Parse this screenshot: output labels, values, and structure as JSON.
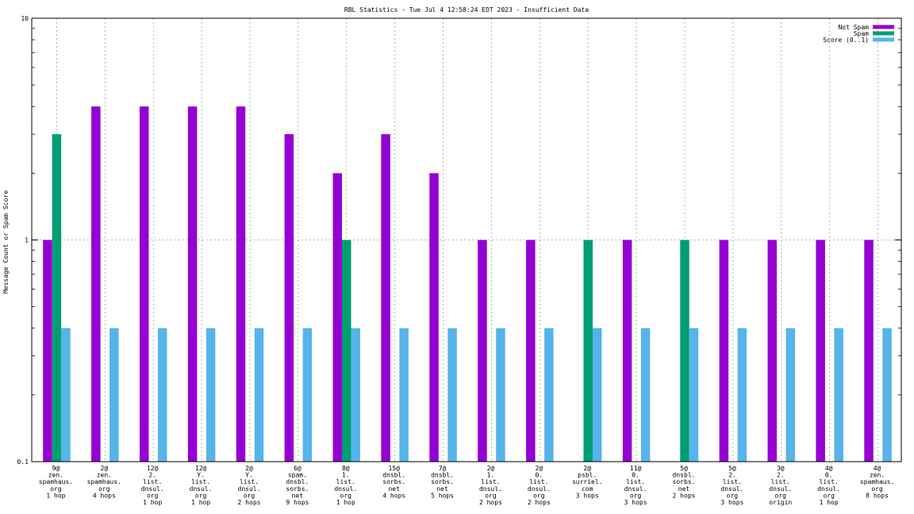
{
  "chart_data": {
    "type": "bar",
    "title": "RBL Statistics - Tue Jul  4 12:58:24 EDT 2023 - Insufficient Data",
    "ylabel": "Message Count or Spam Score",
    "yscale": "log",
    "ylim": [
      0.1,
      10
    ],
    "yticks": [
      {
        "value": 10,
        "label": "10"
      },
      {
        "value": 1,
        "label": "1"
      },
      {
        "value": 0.1,
        "label": "0.1"
      }
    ],
    "grid": "dotted at 1",
    "legend_position": "top-right",
    "categories": [
      [
        "9@",
        "zen.",
        "spamhaus.",
        "org",
        "1 hop"
      ],
      [
        "2@",
        "zen.",
        "spamhaus.",
        "org",
        "4 hops"
      ],
      [
        "12@",
        "2.",
        "list.",
        "dnsul.",
        "org",
        "1 hop"
      ],
      [
        "12@",
        "Y.",
        "list.",
        "dnsul.",
        "org",
        "1 hop"
      ],
      [
        "2@",
        "Y.",
        "list.",
        "dnsul.",
        "org",
        "2 hops"
      ],
      [
        "6@",
        "spam.",
        "dnsbl.",
        "sorbs.",
        "net",
        "9 hops"
      ],
      [
        "8@",
        "1.",
        "list.",
        "dnsul.",
        "org",
        "1 hop"
      ],
      [
        "15@",
        "dnsbl.",
        "sorbs.",
        "net",
        "4 hops"
      ],
      [
        "7@",
        "dnsbl.",
        "sorbs.",
        "net",
        "5 hops"
      ],
      [
        "2@",
        "1.",
        "list.",
        "dnsul.",
        "org",
        "2 hops"
      ],
      [
        "2@",
        "0.",
        "list.",
        "dnsul.",
        "org",
        "2 hops"
      ],
      [
        "2@",
        "psbl.",
        "surriel.",
        "com",
        "3 hops"
      ],
      [
        "11@",
        "0.",
        "list.",
        "dnsul.",
        "org",
        "3 hops"
      ],
      [
        "5@",
        "dnsbl.",
        "sorbs.",
        "net",
        "2 hops"
      ],
      [
        "5@",
        "2.",
        "list.",
        "dnsul.",
        "org",
        "3 hops"
      ],
      [
        "3@",
        "2.",
        "list.",
        "dnsul.",
        "org",
        "origin"
      ],
      [
        "4@",
        "0.",
        "list.",
        "dnsul.",
        "org",
        "1 hop"
      ],
      [
        "4@",
        "zen.",
        "spamhaus.",
        "org",
        "8 hops"
      ]
    ],
    "series": [
      {
        "name": "Not Spam",
        "color": "#9400d3",
        "values": [
          1,
          4,
          4,
          4,
          4,
          3,
          2,
          3,
          2,
          1,
          1,
          null,
          1,
          null,
          1,
          1,
          1,
          1
        ]
      },
      {
        "name": "Spam",
        "color": "#009e73",
        "values": [
          3,
          null,
          null,
          null,
          null,
          null,
          1,
          null,
          null,
          null,
          null,
          1,
          null,
          1,
          null,
          null,
          null,
          null
        ]
      },
      {
        "name": "Score (0..1)",
        "color": "#56b4e9",
        "values": [
          0.4,
          0.4,
          0.4,
          0.4,
          0.4,
          0.4,
          0.4,
          0.4,
          0.4,
          0.4,
          0.4,
          0.4,
          0.4,
          0.4,
          0.4,
          0.4,
          0.4,
          0.4
        ]
      }
    ]
  }
}
